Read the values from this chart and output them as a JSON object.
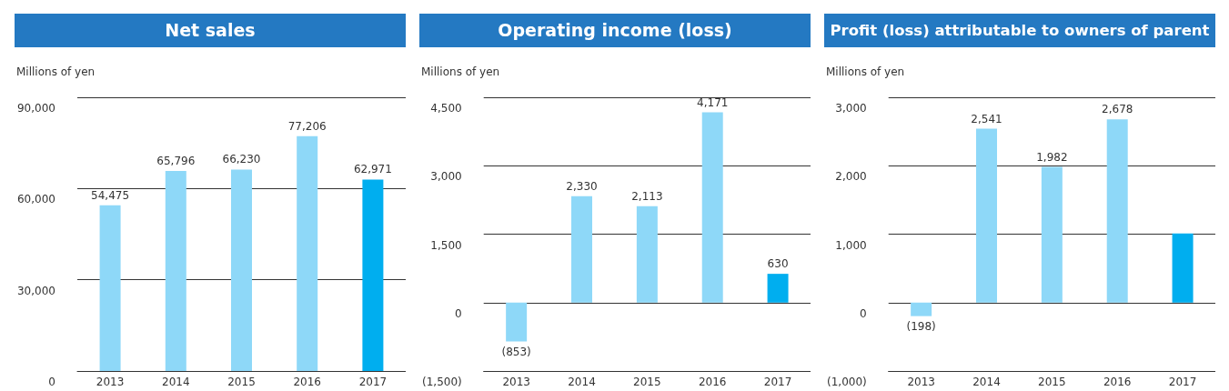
{
  "chart_data": [
    {
      "type": "bar",
      "title": "Net sales",
      "ylabel": "Millions of yen",
      "categories": [
        "2013",
        "2014",
        "2015",
        "2016",
        "2017"
      ],
      "values": [
        54475,
        65796,
        66230,
        77206,
        62971
      ],
      "colors": [
        "#8ed8f8",
        "#8ed8f8",
        "#8ed8f8",
        "#8ed8f8",
        "#00aeef"
      ],
      "value_labels": [
        "54,475",
        "65,796",
        "66,230",
        "77,206",
        "62,971"
      ],
      "ylim": [
        0,
        90000
      ],
      "yticks": [
        {
          "value": 0,
          "label": "0"
        },
        {
          "value": 30000,
          "label": "30,000"
        },
        {
          "value": 60000,
          "label": "60,000"
        },
        {
          "value": 90000,
          "label": "90,000"
        }
      ],
      "grid": "y"
    },
    {
      "type": "bar",
      "title": "Operating income (loss)",
      "ylabel": "Millions of yen",
      "categories": [
        "2013",
        "2014",
        "2015",
        "2016",
        "2017"
      ],
      "values": [
        -853,
        2330,
        2113,
        4171,
        630
      ],
      "colors": [
        "#8ed8f8",
        "#8ed8f8",
        "#8ed8f8",
        "#8ed8f8",
        "#00aeef"
      ],
      "value_labels": [
        "(853)",
        "2,330",
        "2,113",
        "4,171",
        "630"
      ],
      "ylim": [
        -1500,
        4500
      ],
      "yticks": [
        {
          "value": -1500,
          "label": "(1,500)"
        },
        {
          "value": 0,
          "label": "0"
        },
        {
          "value": 1500,
          "label": "1,500"
        },
        {
          "value": 3000,
          "label": "3,000"
        },
        {
          "value": 4500,
          "label": "4,500"
        }
      ],
      "grid": "y"
    },
    {
      "type": "bar",
      "title": "Profit (loss) attributable to owners of parent",
      "ylabel": "Millions of yen",
      "categories": [
        "2013",
        "2014",
        "2015",
        "2016",
        "2017"
      ],
      "values": [
        -198,
        2541,
        1982,
        2678,
        1010
      ],
      "colors": [
        "#8ed8f8",
        "#8ed8f8",
        "#8ed8f8",
        "#8ed8f8",
        "#00aeef"
      ],
      "value_labels": [
        "(198)",
        "2,541",
        "1,982",
        "2,678",
        null
      ],
      "ylim": [
        -1000,
        3000
      ],
      "yticks": [
        {
          "value": -1000,
          "label": "(1,000)"
        },
        {
          "value": 0,
          "label": "0"
        },
        {
          "value": 1000,
          "label": "1,000"
        },
        {
          "value": 2000,
          "label": "2,000"
        },
        {
          "value": 3000,
          "label": "3,000"
        }
      ],
      "grid": "y"
    }
  ]
}
